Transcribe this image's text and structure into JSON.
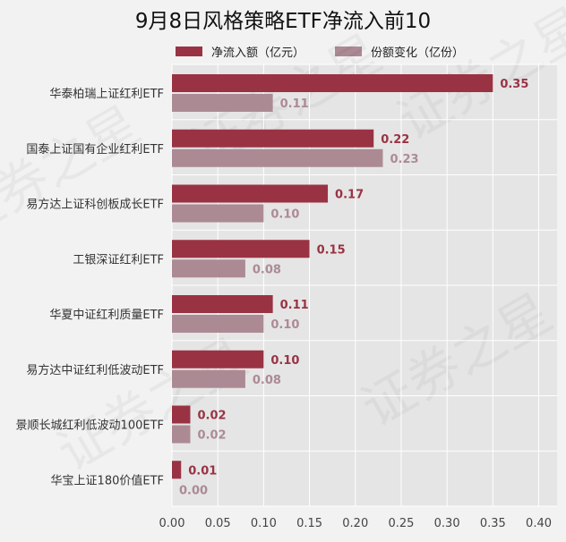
{
  "chart_data": {
    "type": "bar",
    "orientation": "horizontal",
    "title": "9月8日风格策略ETF净流入前10",
    "categories": [
      "华泰柏瑞上证红利ETF",
      "国泰上证国有企业红利ETF",
      "易方达上证科创板成长ETF",
      "工银深证红利ETF",
      "华夏中证红利质量ETF",
      "易方达中证红利低波动ETF",
      "景顺长城红利低波动100ETF",
      "华宝上证180价值ETF"
    ],
    "series": [
      {
        "name": "净流入额（亿元）",
        "color": "#993344",
        "values": [
          0.35,
          0.22,
          0.17,
          0.15,
          0.11,
          0.1,
          0.02,
          0.01
        ],
        "labels": [
          "0.35",
          "0.22",
          "0.17",
          "0.15",
          "0.11",
          "0.10",
          "0.02",
          "0.01"
        ]
      },
      {
        "name": "份额变化（亿份）",
        "color": "#ac8a94",
        "values": [
          0.11,
          0.23,
          0.1,
          0.08,
          0.1,
          0.08,
          0.02,
          0.0
        ],
        "labels": [
          "0.11",
          "0.23",
          "0.10",
          "0.08",
          "0.10",
          "0.08",
          "0.02",
          "0.00"
        ]
      }
    ],
    "xlim": [
      0,
      0.42
    ],
    "xticks": [
      "0.00",
      "0.05",
      "0.10",
      "0.15",
      "0.20",
      "0.25",
      "0.30",
      "0.35",
      "0.40"
    ],
    "grid": true,
    "legend_position": "top",
    "watermark": "证券之星"
  }
}
